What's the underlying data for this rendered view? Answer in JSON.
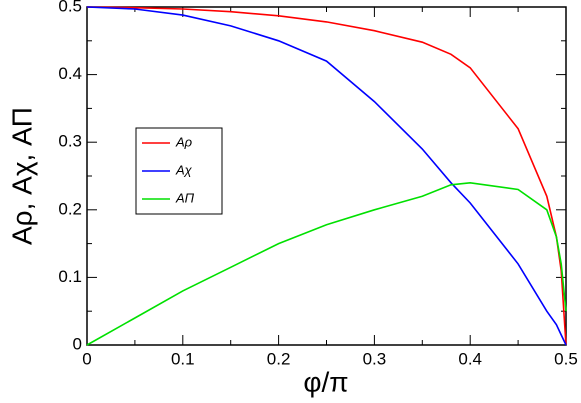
{
  "chart_data": {
    "type": "line",
    "x_label": "φ/π",
    "y_label": "Aρ, Aχ, AΠ",
    "x": [
      0,
      0.05,
      0.1,
      0.15,
      0.2,
      0.25,
      0.3,
      0.35,
      0.38,
      0.4,
      0.45,
      0.48,
      0.49,
      0.495,
      0.5
    ],
    "series": [
      {
        "name": "Aρ",
        "color": "#ff0000",
        "values": [
          0.5,
          0.499,
          0.497,
          0.493,
          0.487,
          0.478,
          0.465,
          0.448,
          0.43,
          0.41,
          0.32,
          0.22,
          0.16,
          0.11,
          0
        ]
      },
      {
        "name": "Aχ",
        "color": "#0000ff",
        "values": [
          0.5,
          0.497,
          0.488,
          0.472,
          0.45,
          0.42,
          0.36,
          0.29,
          0.24,
          0.21,
          0.12,
          0.05,
          0.03,
          0.015,
          0
        ]
      },
      {
        "name": "AΠ",
        "color": "#00e000",
        "values": [
          0,
          0.04,
          0.08,
          0.115,
          0.15,
          0.178,
          0.2,
          0.22,
          0.237,
          0.24,
          0.23,
          0.2,
          0.16,
          0.12,
          0.05
        ]
      }
    ],
    "xlim": [
      0,
      0.5
    ],
    "ylim": [
      0,
      0.5
    ],
    "xticks": [
      0,
      0.1,
      0.2,
      0.3,
      0.4,
      0.5
    ],
    "yticks": [
      0,
      0.1,
      0.2,
      0.3,
      0.4,
      0.5
    ],
    "legend": "center left"
  }
}
